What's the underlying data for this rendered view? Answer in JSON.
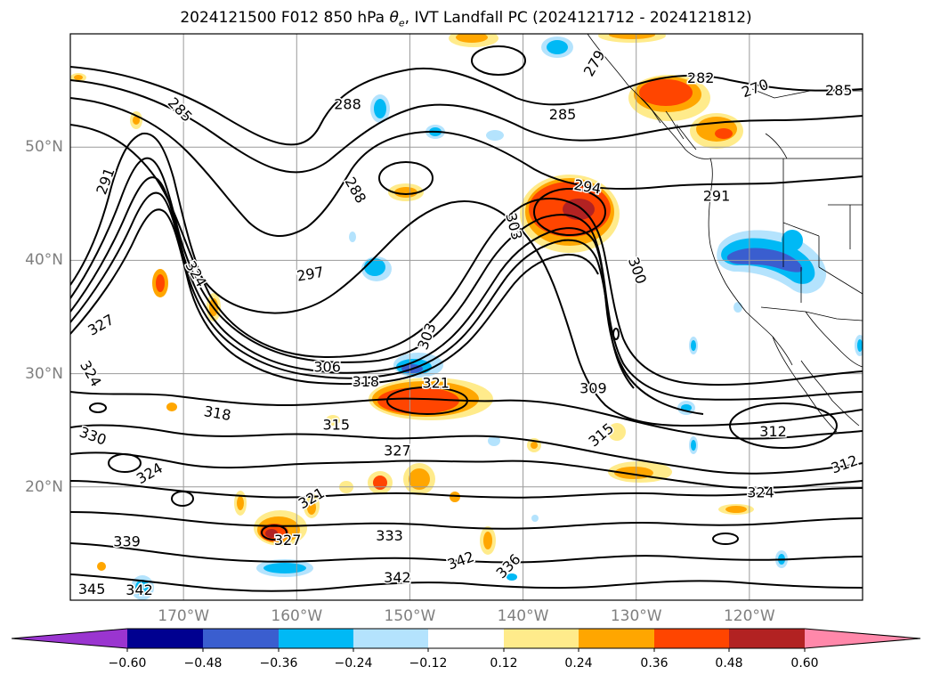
{
  "title": "2024121500 F012 850 hPa θe, IVT Landfall PC (2024121712 - 2024121812)",
  "title_parts": {
    "prefix": "2024121500 F012 850 hPa ",
    "theta": "θ",
    "theta_sub": "e",
    "suffix": ", IVT Landfall PC (2024121712 - 2024121812)"
  },
  "map": {
    "extent": {
      "lon_min": -180,
      "lon_max": -110,
      "lat_min": 10,
      "lat_max": 60
    },
    "lat_ticks": [
      {
        "value": 20,
        "label": "20°N"
      },
      {
        "value": 30,
        "label": "30°N"
      },
      {
        "value": 40,
        "label": "40°N"
      },
      {
        "value": 50,
        "label": "50°N"
      }
    ],
    "lon_ticks": [
      {
        "value": -170,
        "label": "170°W"
      },
      {
        "value": -160,
        "label": "160°W"
      },
      {
        "value": -150,
        "label": "150°W"
      },
      {
        "value": -140,
        "label": "140°W"
      },
      {
        "value": -130,
        "label": "130°W"
      },
      {
        "value": -120,
        "label": "120°W"
      }
    ],
    "gridlines": true,
    "contour_labels": [
      {
        "text": "285",
        "lon": -170.3,
        "lat": 53.3,
        "rot": 45
      },
      {
        "text": "288",
        "lon": -155.5,
        "lat": 53.8,
        "rot": 0
      },
      {
        "text": "285",
        "lon": -136.5,
        "lat": 52.9,
        "rot": 0
      },
      {
        "text": "288",
        "lon": -154.8,
        "lat": 46.2,
        "rot": 60
      },
      {
        "text": "291",
        "lon": -176.9,
        "lat": 47.0,
        "rot": -70
      },
      {
        "text": "294",
        "lon": -134.3,
        "lat": 46.5,
        "rot": 10
      },
      {
        "text": "291",
        "lon": -122.9,
        "lat": 45.7,
        "rot": 0
      },
      {
        "text": "303",
        "lon": -140.8,
        "lat": 43.0,
        "rot": 75
      },
      {
        "text": "300",
        "lon": -129.9,
        "lat": 39.1,
        "rot": 70
      },
      {
        "text": "297",
        "lon": -158.8,
        "lat": 38.8,
        "rot": -10
      },
      {
        "text": "324",
        "lon": -168.9,
        "lat": 38.8,
        "rot": 60
      },
      {
        "text": "327",
        "lon": -177.3,
        "lat": 34.3,
        "rot": -30
      },
      {
        "text": "303",
        "lon": -148.5,
        "lat": 33.3,
        "rot": -70
      },
      {
        "text": "306",
        "lon": -157.3,
        "lat": 30.6,
        "rot": 0
      },
      {
        "text": "318",
        "lon": -153.9,
        "lat": 29.3,
        "rot": 0
      },
      {
        "text": "321",
        "lon": -147.7,
        "lat": 29.2,
        "rot": 0
      },
      {
        "text": "309",
        "lon": -133.8,
        "lat": 28.7,
        "rot": 0
      },
      {
        "text": "324",
        "lon": -178.2,
        "lat": 30.0,
        "rot": 60
      },
      {
        "text": "318",
        "lon": -167.0,
        "lat": 26.5,
        "rot": 10
      },
      {
        "text": "315",
        "lon": -156.5,
        "lat": 25.5,
        "rot": 0
      },
      {
        "text": "315",
        "lon": -133.1,
        "lat": 24.6,
        "rot": -40
      },
      {
        "text": "312",
        "lon": -117.9,
        "lat": 24.9,
        "rot": 0
      },
      {
        "text": "330",
        "lon": -178.0,
        "lat": 24.5,
        "rot": 20
      },
      {
        "text": "327",
        "lon": -151.1,
        "lat": 23.2,
        "rot": 0
      },
      {
        "text": "312",
        "lon": -111.6,
        "lat": 22.0,
        "rot": -20
      },
      {
        "text": "324",
        "lon": -173.0,
        "lat": 21.2,
        "rot": -30
      },
      {
        "text": "324",
        "lon": -119.0,
        "lat": 19.5,
        "rot": 0
      },
      {
        "text": "321",
        "lon": -158.7,
        "lat": 19.0,
        "rot": -30
      },
      {
        "text": "327",
        "lon": -160.8,
        "lat": 15.3,
        "rot": 0
      },
      {
        "text": "333",
        "lon": -151.8,
        "lat": 15.7,
        "rot": 0
      },
      {
        "text": "339",
        "lon": -175.0,
        "lat": 15.2,
        "rot": 0
      },
      {
        "text": "342",
        "lon": -145.5,
        "lat": 13.5,
        "rot": -20
      },
      {
        "text": "336",
        "lon": -141.3,
        "lat": 13.0,
        "rot": -45
      },
      {
        "text": "342",
        "lon": -151.1,
        "lat": 12.0,
        "rot": 0
      },
      {
        "text": "345",
        "lon": -178.1,
        "lat": 11.0,
        "rot": 0
      },
      {
        "text": "342",
        "lon": -173.9,
        "lat": 10.9,
        "rot": 0
      },
      {
        "text": "282",
        "lon": -124.3,
        "lat": 56.1,
        "rot": 0
      },
      {
        "text": "270",
        "lon": -119.5,
        "lat": 55.2,
        "rot": -20
      },
      {
        "text": "285",
        "lon": -112.1,
        "lat": 55.0,
        "rot": 0
      },
      {
        "text": "279",
        "lon": -133.7,
        "lat": 57.4,
        "rot": -60
      }
    ]
  },
  "colorbar": {
    "extend": "both",
    "colors": [
      "#9a35d0",
      "#000090",
      "#3a5ecf",
      "#00b9f5",
      "#b4e3fd",
      "#ffffff",
      "#ffeb8b",
      "#ffa600",
      "#ff4500",
      "#b22222",
      "#ff88aa"
    ],
    "tick_labels": [
      "−0.60",
      "−0.48",
      "−0.36",
      "−0.24",
      "−0.12",
      "0.12",
      "0.24",
      "0.36",
      "0.48",
      "0.60"
    ]
  }
}
